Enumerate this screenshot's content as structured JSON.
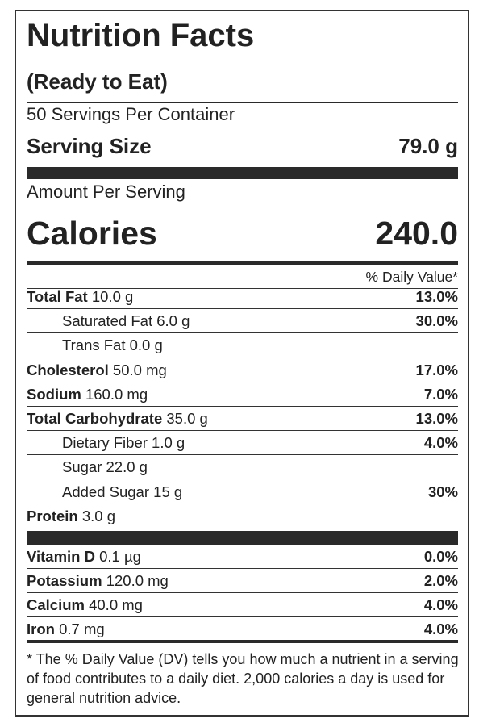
{
  "header": {
    "title": "Nutrition Facts",
    "subtitle": "(Ready to Eat)",
    "servings": "50 Servings Per Container",
    "serving_size_label": "Serving Size",
    "serving_size": "79.0 g"
  },
  "calories": {
    "amount_label": "Amount Per Serving",
    "label": "Calories",
    "value": "240.0"
  },
  "daily_value_header": "% Daily Value*",
  "nutrients": [
    {
      "name": "Total Fat",
      "amount": "10.0 g",
      "dv": "13.0%",
      "sub": [
        {
          "name": "Saturated Fat",
          "amount": "6.0 g",
          "dv": "30.0%"
        },
        {
          "name": "Trans Fat",
          "amount": "0.0 g"
        }
      ]
    },
    {
      "name": "Cholesterol",
      "amount": "50.0 mg",
      "dv": "17.0%"
    },
    {
      "name": "Sodium",
      "amount": "160.0 mg",
      "dv": "7.0%"
    },
    {
      "name": "Total Carbohydrate",
      "amount": "35.0 g",
      "dv": "13.0%",
      "sub": [
        {
          "name": "Dietary Fiber",
          "amount": "1.0 g",
          "dv": "4.0%"
        },
        {
          "name": "Sugar",
          "amount": "22.0 g"
        },
        {
          "name": "Added Sugar",
          "amount": "15 g",
          "dv": "30%"
        }
      ]
    },
    {
      "name": "Protein",
      "amount": "3.0 g"
    }
  ],
  "vitamins": [
    {
      "name": "Vitamin D",
      "amount": "0.1 µg",
      "dv": "0.0%"
    },
    {
      "name": "Potassium",
      "amount": "120.0 mg",
      "dv": "2.0%"
    },
    {
      "name": "Calcium",
      "amount": "40.0 mg",
      "dv": "4.0%"
    },
    {
      "name": "Iron",
      "amount": "0.7 mg",
      "dv": "4.0%"
    }
  ],
  "footnote": "* The % Daily Value (DV) tells you how much a nutrient in a serving of food contributes to a daily diet. 2,000 calories a day is used for general nutrition advice."
}
